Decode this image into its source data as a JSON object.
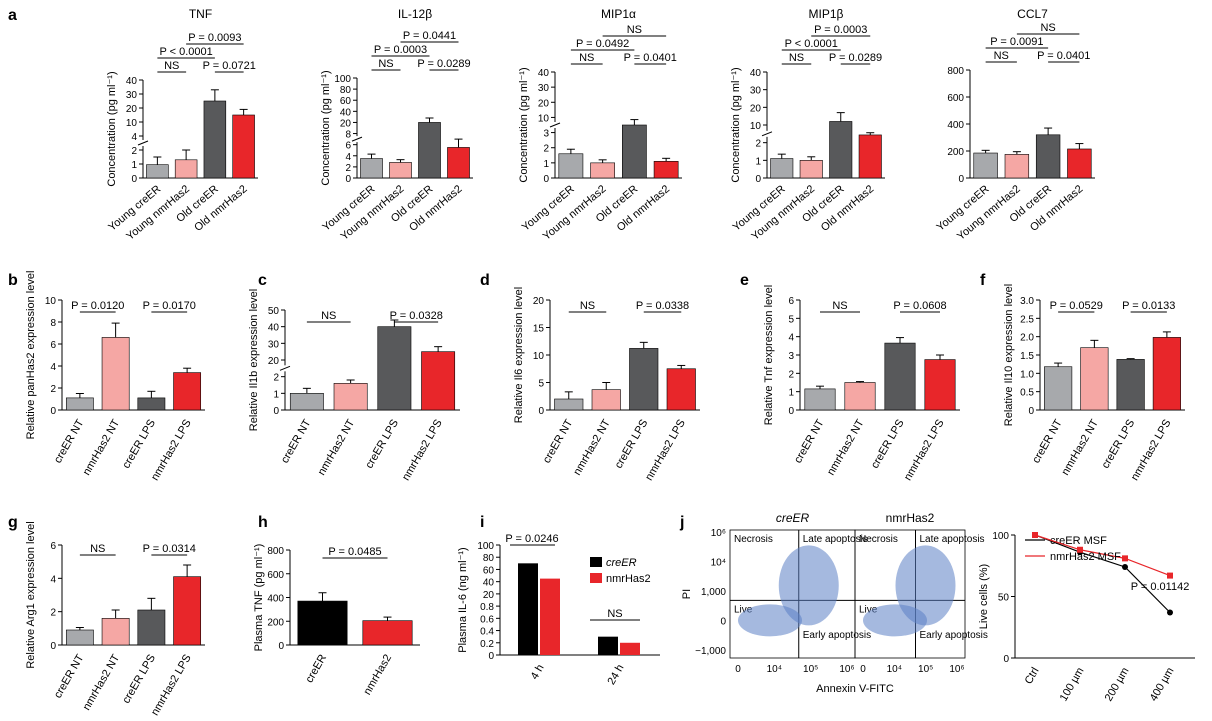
{
  "colors": {
    "young_creER": "#a7a9ac",
    "young_nmr": "#f5a7a4",
    "old_creER": "#58595b",
    "old_nmr": "#e8262a",
    "black": "#000000",
    "red": "#e8262a"
  },
  "chart_data": [
    {
      "panel": "a",
      "type": "bar",
      "title": "TNF",
      "ylabel": "Concentration (pg ml⁻¹)",
      "categories": [
        "Young creER",
        "Young nmrHas2",
        "Old creER",
        "Old nmrHas2"
      ],
      "values": [
        0.95,
        1.3,
        25,
        15
      ],
      "errors": [
        0.55,
        0.7,
        8,
        4
      ],
      "ticks": [
        "0",
        "1",
        "2",
        "4",
        "10",
        "20",
        "30",
        "40"
      ],
      "annotations": [
        "P = 0.0093",
        "P < 0.0001",
        "NS",
        "P = 0.0721"
      ]
    },
    {
      "panel": "a",
      "type": "bar",
      "title": "IL-12β",
      "ylabel": "Concentration (pg ml⁻¹)",
      "categories": [
        "Young creER",
        "Young nmrHas2",
        "Old creER",
        "Old nmrHas2"
      ],
      "values": [
        3.5,
        2.8,
        20,
        5.5
      ],
      "errors": [
        0.8,
        0.5,
        8,
        1.5
      ],
      "ticks": [
        "0",
        "2",
        "4",
        "6",
        "8",
        "20",
        "40",
        "60",
        "80",
        "100"
      ],
      "annotations": [
        "P = 0.0441",
        "P = 0.0003",
        "NS",
        "P = 0.0289"
      ]
    },
    {
      "panel": "a",
      "type": "bar",
      "title": "MIP1α",
      "ylabel": "Concentration (pg ml⁻¹)",
      "categories": [
        "Young creER",
        "Young nmrHas2",
        "Old creER",
        "Old nmrHas2"
      ],
      "values": [
        1.6,
        1.0,
        6.5,
        1.1
      ],
      "errors": [
        0.3,
        0.2,
        2.5,
        0.2
      ],
      "ticks": [
        "0",
        "1",
        "2",
        "3",
        "10",
        "20",
        "30",
        "40"
      ],
      "annotations": [
        "NS",
        "P = 0.0492",
        "NS",
        "P = 0.0401"
      ]
    },
    {
      "panel": "a",
      "type": "bar",
      "title": "MIP1β",
      "ylabel": "Concentration (pg ml⁻¹)",
      "categories": [
        "Young creER",
        "Young nmrHas2",
        "Old creER",
        "Old nmrHas2"
      ],
      "values": [
        1.1,
        1.0,
        12,
        5.5
      ],
      "errors": [
        0.25,
        0.2,
        5,
        1
      ],
      "ticks": [
        "0",
        "1",
        "2",
        "10",
        "20",
        "30",
        "40"
      ],
      "annotations": [
        "P = 0.0003",
        "P < 0.0001",
        "NS",
        "P = 0.0289"
      ]
    },
    {
      "panel": "a",
      "type": "bar",
      "title": "CCL7",
      "categories": [
        "Young creER",
        "Young nmrHas2",
        "Old creER",
        "Old nmrHas2"
      ],
      "values": [
        185,
        175,
        320,
        215
      ],
      "errors": [
        20,
        20,
        50,
        40
      ],
      "ticks": [
        "0",
        "200",
        "400",
        "600",
        "800"
      ],
      "annotations": [
        "NS",
        "P = 0.0091",
        "NS",
        "P = 0.0401"
      ]
    },
    {
      "panel": "b",
      "type": "bar",
      "ylabel": "Relative panHas2 expression level",
      "categories": [
        "creER NT",
        "nmrHas2 NT",
        "creER LPS",
        "nmrHas2 LPS"
      ],
      "values": [
        1.1,
        6.6,
        1.1,
        3.4
      ],
      "errors": [
        0.4,
        1.3,
        0.6,
        0.4
      ],
      "ticks": [
        "0",
        "2",
        "4",
        "6",
        "8",
        "10"
      ],
      "annotations": [
        "P = 0.0120",
        "P = 0.0170"
      ]
    },
    {
      "panel": "c",
      "type": "bar",
      "ylabel": "Relative Il1b expression level",
      "categories": [
        "creER NT",
        "nmrHas2 NT",
        "creER LPS",
        "nmrHas2 LPS"
      ],
      "values": [
        1.0,
        1.6,
        40,
        25
      ],
      "errors": [
        0.3,
        0.2,
        4,
        3
      ],
      "ticks": [
        "0",
        "1",
        "2",
        "20",
        "30",
        "40",
        "50"
      ],
      "annotations": [
        "NS",
        "P = 0.0328"
      ]
    },
    {
      "panel": "d",
      "type": "bar",
      "ylabel": "Relative Il6 expression level",
      "categories": [
        "creER NT",
        "nmrHas2 NT",
        "creER LPS",
        "nmrHas2 LPS"
      ],
      "values": [
        2.0,
        3.7,
        11.2,
        7.5
      ],
      "errors": [
        1.3,
        1.3,
        1.1,
        0.6
      ],
      "ticks": [
        "0",
        "5",
        "10",
        "15",
        "20"
      ],
      "annotations": [
        "NS",
        "P = 0.0338"
      ]
    },
    {
      "panel": "e",
      "type": "bar",
      "ylabel": "Relative Tnf expression level",
      "categories": [
        "creER NT",
        "nmrHas2 NT",
        "creER LPS",
        "nmrHas2 LPS"
      ],
      "values": [
        1.15,
        1.5,
        3.65,
        2.75
      ],
      "errors": [
        0.15,
        0.05,
        0.3,
        0.25
      ],
      "ticks": [
        "0",
        "1",
        "2",
        "3",
        "4",
        "5",
        "6"
      ],
      "annotations": [
        "NS",
        "P = 0.0608"
      ]
    },
    {
      "panel": "f",
      "type": "bar",
      "ylabel": "Relative Il10 expression level",
      "categories": [
        "creER NT",
        "nmrHas2 NT",
        "creER LPS",
        "nmrHas2 LPS"
      ],
      "values": [
        1.18,
        1.7,
        1.38,
        1.98
      ],
      "errors": [
        0.1,
        0.2,
        0.02,
        0.15
      ],
      "ticks": [
        "0",
        "0.5",
        "1.0",
        "1.5",
        "2.0",
        "2.5",
        "3.0"
      ],
      "annotations": [
        "P = 0.0529",
        "P = 0.0133"
      ]
    },
    {
      "panel": "g",
      "type": "bar",
      "ylabel": "Relative Arg1 expression level",
      "categories": [
        "creER NT",
        "nmrHas2 NT",
        "creER LPS",
        "nmrHas2 LPS"
      ],
      "values": [
        0.9,
        1.6,
        2.1,
        4.1
      ],
      "errors": [
        0.15,
        0.5,
        0.7,
        0.7
      ],
      "ticks": [
        "0",
        "2",
        "4",
        "6"
      ],
      "annotations": [
        "NS",
        "P = 0.0314"
      ]
    },
    {
      "panel": "h",
      "type": "bar",
      "ylabel": "Plasma TNF (pg ml⁻¹)",
      "categories": [
        "creER",
        "nmrHas2"
      ],
      "values": [
        370,
        205
      ],
      "errors": [
        70,
        30
      ],
      "ticks": [
        "0",
        "200",
        "400",
        "600",
        "800"
      ],
      "annotations": [
        "P = 0.0485"
      ]
    },
    {
      "panel": "i",
      "type": "bar",
      "ylabel": "Plasma IL-6 (ng ml⁻¹)",
      "categories": [
        "4 h",
        "24 h"
      ],
      "series": [
        {
          "name": "creER",
          "values": [
            70,
            0.3
          ]
        },
        {
          "name": "nmrHas2",
          "values": [
            45,
            0.2
          ]
        }
      ],
      "ticks": [
        "0",
        "0.2",
        "0.4",
        "0.6",
        "0.8",
        "20",
        "40",
        "60",
        "80",
        "100"
      ],
      "annotations": [
        "P = 0.0246",
        "NS"
      ]
    },
    {
      "panel": "j",
      "type": "scatter",
      "title": "creER",
      "quadrants": [
        "Necrosis",
        "Late apoptosis",
        "Live",
        "Early apoptosis"
      ],
      "ylabel": "PI",
      "xlabel": "Annexin V-FITC",
      "yticks": [
        "10⁶",
        "10⁴",
        "1,000",
        "0",
        "−1,000"
      ],
      "xticks": [
        "0",
        "10⁴",
        "10⁵",
        "10⁶"
      ]
    },
    {
      "panel": "j",
      "type": "scatter",
      "title": "nmrHas2",
      "quadrants": [
        "Necrosis",
        "Late apoptosis",
        "Live",
        "Early apoptosis"
      ],
      "xticks": [
        "0",
        "10⁴",
        "10⁵",
        "10⁶"
      ]
    },
    {
      "panel": "j",
      "type": "line",
      "ylabel": "Live cells (%)",
      "categories": [
        "Ctrl",
        "100 µm",
        "200 µm",
        "400 µm"
      ],
      "series": [
        {
          "name": "creER MSF",
          "values": [
            100,
            86,
            74,
            37
          ]
        },
        {
          "name": "nmrHas2 MSF",
          "values": [
            100,
            88,
            81,
            67
          ]
        }
      ],
      "ticks": [
        "0",
        "50",
        "100"
      ],
      "annotations": [
        "P = 0.01142"
      ]
    }
  ],
  "panel_letters": [
    "a",
    "b",
    "c",
    "d",
    "e",
    "f",
    "g",
    "h",
    "i",
    "j"
  ]
}
